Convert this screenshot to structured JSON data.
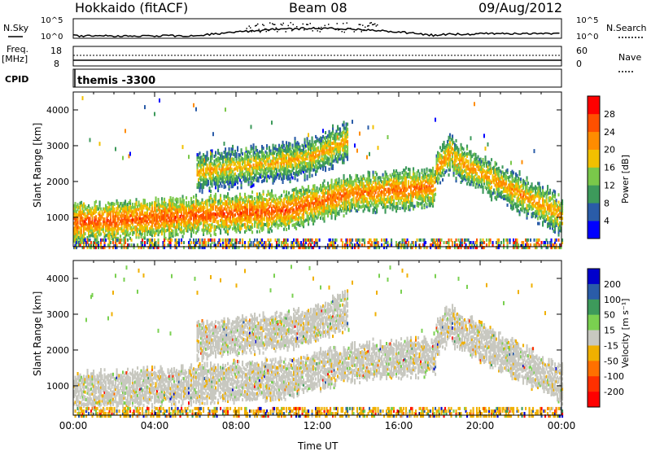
{
  "header": {
    "station": "Hokkaido (fitACF)",
    "beam": "Beam 08",
    "date": "09/Aug/2012"
  },
  "strip_labels": {
    "nsky_label": "N.Sky",
    "nsky_ticks": [
      "10^5",
      "10^0"
    ],
    "nsearch_label": "N.Search",
    "nsearch_ticks": [
      "10^5",
      "10^0"
    ],
    "freq_label": "Freq.",
    "freq_unit": "[MHz]",
    "freq_ticks": [
      "18",
      "8"
    ],
    "nave_label": "Nave",
    "nave_ticks": [
      "60",
      "0"
    ],
    "cpid_label": "CPID",
    "cpid_value": "themis -3300"
  },
  "chart_data": [
    {
      "type": "heatmap",
      "name": "Power",
      "ylabel": "Slant Range [km]",
      "ylim": [
        180,
        4500
      ],
      "yticks": [
        "1000",
        "2000",
        "3000",
        "4000"
      ],
      "xlim_hours": [
        0,
        24
      ],
      "colorbar": {
        "label": "Power [dB]",
        "ticks": [
          "4",
          "8",
          "12",
          "16",
          "20",
          "24",
          "28"
        ],
        "colors": [
          "#0000ff",
          "#2a5ca8",
          "#3d9a5b",
          "#7ac84a",
          "#f2c000",
          "#ff8c00",
          "#ff5000",
          "#ff0000"
        ]
      },
      "echo_bands": [
        {
          "t0": 0.0,
          "r0": 900,
          "t1": 10.5,
          "r1": 1250,
          "power_db": 26
        },
        {
          "t0": 10.5,
          "r0": 1250,
          "t1": 13.5,
          "r1": 1700,
          "power_db": 25
        },
        {
          "t0": 13.5,
          "r0": 1700,
          "t1": 17.8,
          "r1": 1900,
          "power_db": 24
        },
        {
          "t0": 17.8,
          "r0": 2400,
          "t1": 18.6,
          "r1": 2900,
          "power_db": 22
        },
        {
          "t0": 18.6,
          "r0": 2700,
          "t1": 24.0,
          "r1": 1100,
          "power_db": 22
        },
        {
          "t0": 6.0,
          "r0": 2300,
          "t1": 11.5,
          "r1": 2700,
          "power_db": 20
        },
        {
          "t0": 11.5,
          "r0": 2700,
          "t1": 13.5,
          "r1": 3200,
          "power_db": 21
        }
      ]
    },
    {
      "type": "heatmap",
      "name": "Velocity",
      "ylabel": "Slant Range [km]",
      "xlabel": "Time UT",
      "ylim": [
        180,
        4500
      ],
      "yticks": [
        "1000",
        "2000",
        "3000",
        "4000"
      ],
      "xticks": [
        "00:00",
        "04:00",
        "08:00",
        "12:00",
        "16:00",
        "20:00",
        "00:00"
      ],
      "colorbar": {
        "label": "Velocity [m s⁻¹]",
        "ticks": [
          "200",
          "100",
          "50",
          "15",
          "-15",
          "-50",
          "-100",
          "-200"
        ],
        "colors": [
          "#0000cc",
          "#2a5ca8",
          "#3d9a5b",
          "#7ad050",
          "#c8c8c0",
          "#f0b000",
          "#ff7000",
          "#ff3000",
          "#ff0000"
        ]
      },
      "ground_scatter_color": "#c8c8c0"
    }
  ]
}
